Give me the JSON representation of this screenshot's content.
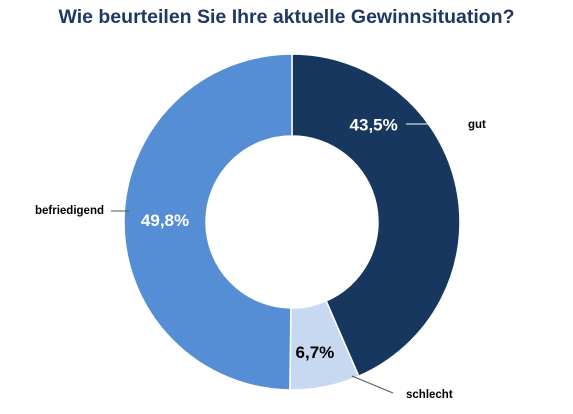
{
  "chart_data": {
    "type": "pie",
    "title": "Wie beurteilen Sie Ihre aktuelle Gewinnsituation?",
    "categories": [
      "gut",
      "schlecht",
      "befriedigend"
    ],
    "values": [
      43.5,
      6.7,
      49.8
    ],
    "data_labels": [
      "43,5%",
      "6,7%",
      "49,8%"
    ],
    "colors": [
      "#17375e",
      "#c6d9f1",
      "#558ed5"
    ],
    "label_colors": [
      "#ffffff",
      "#000000",
      "#ffffff"
    ]
  }
}
